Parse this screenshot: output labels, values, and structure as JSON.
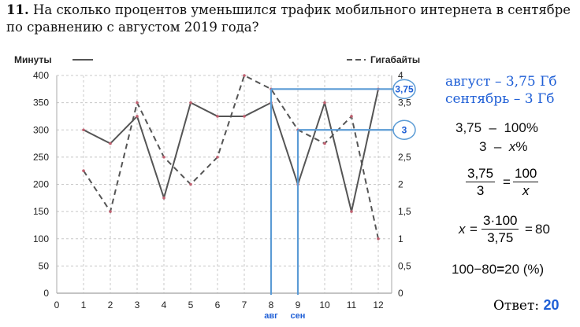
{
  "question": {
    "number": "11.",
    "text": "На сколько процентов уменьшился трафик мобильного интернета в сентябре по сравнению с августом 2019 года?"
  },
  "chart_data": {
    "type": "line",
    "x": [
      1,
      2,
      3,
      4,
      5,
      6,
      7,
      8,
      9,
      10,
      11,
      12
    ],
    "x_ticks": [
      "0",
      "1",
      "2",
      "3",
      "4",
      "5",
      "6",
      "7",
      "8",
      "9",
      "10",
      "11",
      "12"
    ],
    "xlim": [
      0,
      12.5
    ],
    "y_left_ticks": [
      "0",
      "50",
      "100",
      "150",
      "200",
      "250",
      "300",
      "350",
      "400"
    ],
    "y_right_ticks": [
      "0",
      "0,5",
      "1",
      "1,5",
      "2",
      "2,5",
      "3",
      "3,5",
      "4"
    ],
    "ylim_left": [
      0,
      400
    ],
    "ylim_right": [
      0,
      4
    ],
    "grid": true,
    "series": [
      {
        "name": "Минуты",
        "axis": "left",
        "style": "solid",
        "color": "#555555",
        "values": [
          300,
          275,
          325,
          175,
          350,
          325,
          325,
          350,
          200,
          350,
          150,
          375
        ]
      },
      {
        "name": "Гигабайты",
        "axis": "right",
        "style": "dashed",
        "color": "#555555",
        "values": [
          2.25,
          1.5,
          3.5,
          2.5,
          2,
          2.5,
          4,
          3.75,
          3,
          2.75,
          3.25,
          1
        ]
      }
    ],
    "annotations": {
      "highlight_color": "#5b9bd5",
      "aug_x": 8,
      "aug_value": 3.75,
      "aug_label": "3,75",
      "sep_x": 9,
      "sep_value": 3,
      "sep_label": "3",
      "x_marks": [
        "авг",
        "сен"
      ]
    }
  },
  "solution": {
    "line1": "август – 3,75 Гб",
    "line2": "сентябрь – 3 Гб",
    "prop1_left": "3,75",
    "prop1_dash": "–",
    "prop1_right": "100%",
    "prop2_left": "3",
    "prop2_dash": "–",
    "prop2_var": "x",
    "prop2_pct": "%",
    "eq1_num_left": "3,75",
    "eq1_den_left": "3",
    "eq1_sign": "=",
    "eq1_num_right": "100",
    "eq1_den_right": "x",
    "eq2_var": "x",
    "eq2_sign1": "=",
    "eq2_num": "3·100",
    "eq2_den": "3,75",
    "eq2_sign2": "=",
    "eq2_result": "80",
    "eq3": "100−80",
    "eq3_sign": "=",
    "eq3_result": "20 (%)",
    "answer_label": "Ответ:",
    "answer_value": "20"
  }
}
